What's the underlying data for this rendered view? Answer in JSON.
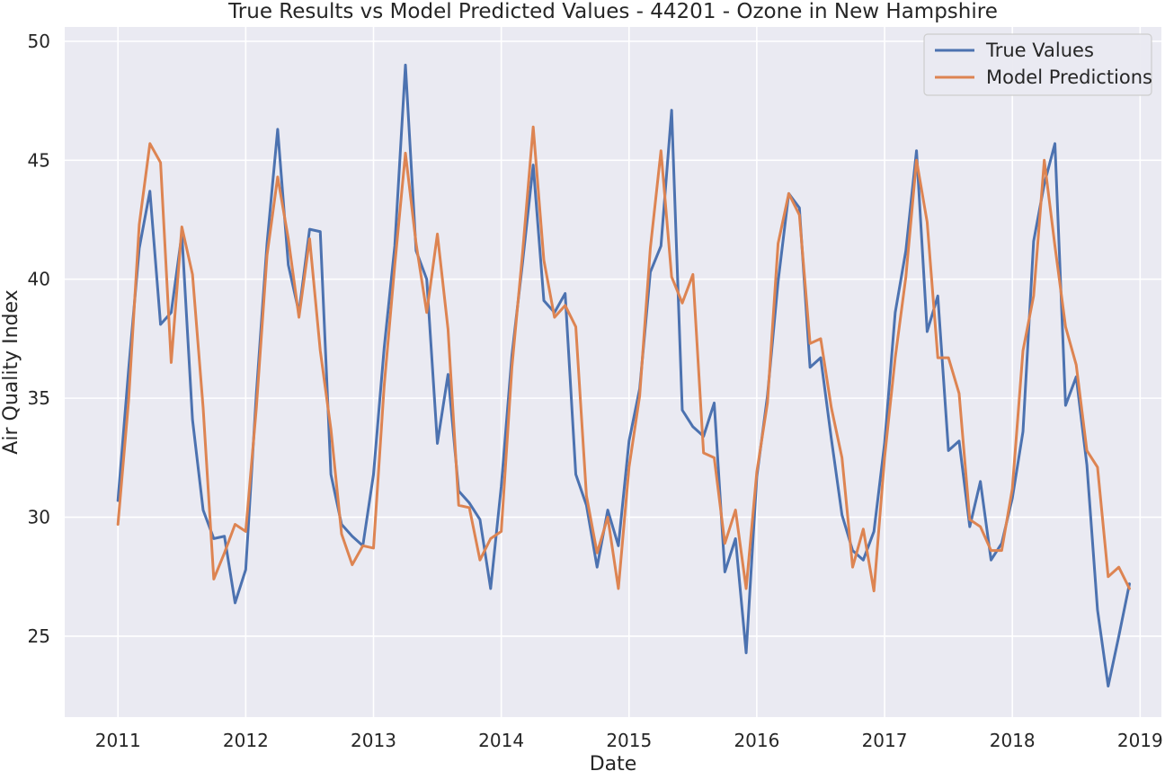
{
  "chart_data": {
    "type": "line",
    "title": "True Results vs Model Predicted Values - 44201 - Ozone in New Hampshire",
    "xlabel": "Date",
    "ylabel": "Air Quality Index",
    "x_start": "2011-01",
    "x_end": "2018-12",
    "xlim": [
      "2010-08",
      "2019-03"
    ],
    "ylim": [
      21.6,
      50.6
    ],
    "x_ticks": [
      "2011",
      "2012",
      "2013",
      "2014",
      "2015",
      "2016",
      "2017",
      "2018",
      "2019"
    ],
    "y_ticks": [
      25,
      30,
      35,
      40,
      45,
      50
    ],
    "grid": true,
    "legend_position": "top-right",
    "series": [
      {
        "name": "True Values",
        "color": "#4c72b0",
        "values": [
          30.7,
          36.2,
          41.3,
          43.7,
          38.1,
          38.6,
          41.9,
          34.1,
          30.3,
          29.1,
          29.2,
          26.4,
          27.8,
          35.2,
          41.5,
          46.3,
          40.6,
          38.6,
          42.1,
          42.0,
          31.8,
          29.7,
          29.2,
          28.8,
          31.8,
          37.1,
          41.4,
          49.0,
          41.2,
          40.0,
          33.1,
          36.0,
          31.1,
          30.6,
          29.9,
          27.0,
          31.3,
          36.8,
          40.7,
          44.8,
          39.1,
          38.6,
          39.4,
          31.8,
          30.5,
          27.9,
          30.3,
          28.8,
          33.2,
          35.4,
          40.3,
          41.4,
          47.1,
          34.5,
          33.8,
          33.4,
          34.8,
          27.7,
          29.1,
          24.3,
          31.7,
          35.1,
          39.9,
          43.6,
          43.0,
          36.3,
          36.7,
          33.3,
          30.1,
          28.6,
          28.2,
          29.4,
          33.1,
          38.6,
          41.2,
          45.4,
          37.8,
          39.3,
          32.8,
          33.2,
          29.6,
          31.5,
          28.2,
          28.9,
          30.8,
          33.6,
          41.6,
          44.0,
          45.7,
          34.7,
          35.9,
          32.2,
          26.1,
          22.9,
          25.0,
          27.2
        ]
      },
      {
        "name": "Model Predictions",
        "color": "#dd8452",
        "values": [
          29.7,
          34.9,
          42.3,
          45.7,
          44.9,
          36.5,
          42.2,
          40.2,
          34.6,
          27.4,
          28.5,
          29.7,
          29.4,
          34.6,
          41.0,
          44.3,
          41.7,
          38.4,
          41.7,
          37.0,
          33.7,
          29.3,
          28.0,
          28.8,
          28.7,
          35.5,
          40.6,
          45.3,
          41.5,
          38.6,
          41.9,
          37.9,
          30.5,
          30.4,
          28.2,
          29.1,
          29.4,
          36.3,
          41.1,
          46.4,
          40.8,
          38.4,
          38.9,
          38.0,
          30.9,
          28.5,
          30.0,
          27.0,
          32.1,
          35.1,
          41.3,
          45.4,
          40.1,
          39.0,
          40.2,
          32.7,
          32.5,
          28.9,
          30.3,
          27.0,
          31.9,
          34.8,
          41.5,
          43.6,
          42.7,
          37.3,
          37.5,
          34.6,
          32.5,
          27.9,
          29.5,
          26.9,
          32.5,
          36.7,
          40.1,
          45.0,
          42.4,
          36.7,
          36.7,
          35.2,
          29.9,
          29.6,
          28.6,
          28.6,
          31.2,
          37.0,
          39.3,
          45.0,
          41.4,
          38.0,
          36.4,
          32.8,
          32.1,
          27.5,
          27.9,
          27.0
        ]
      }
    ]
  }
}
